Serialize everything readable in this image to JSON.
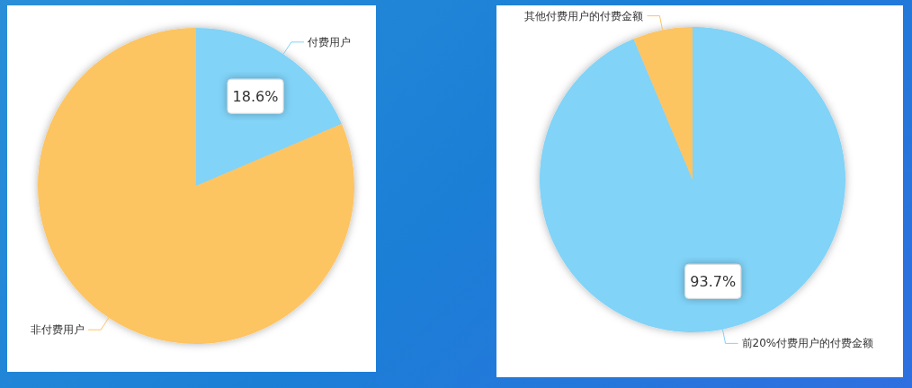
{
  "chart_data": [
    {
      "type": "pie",
      "categories": [
        "付费用户",
        "非付费用户"
      ],
      "values": [
        18.6,
        81.4
      ],
      "colors": [
        "#81d3f8",
        "#fdc462"
      ],
      "value_labels": [
        "18.6%",
        null
      ]
    },
    {
      "type": "pie",
      "categories": [
        "前20%付费用户的付费金额",
        "其他付费用户的付费金额"
      ],
      "values": [
        93.7,
        6.3
      ],
      "colors": [
        "#81d3f8",
        "#fdc462"
      ],
      "value_labels": [
        "93.7%",
        null
      ]
    }
  ]
}
